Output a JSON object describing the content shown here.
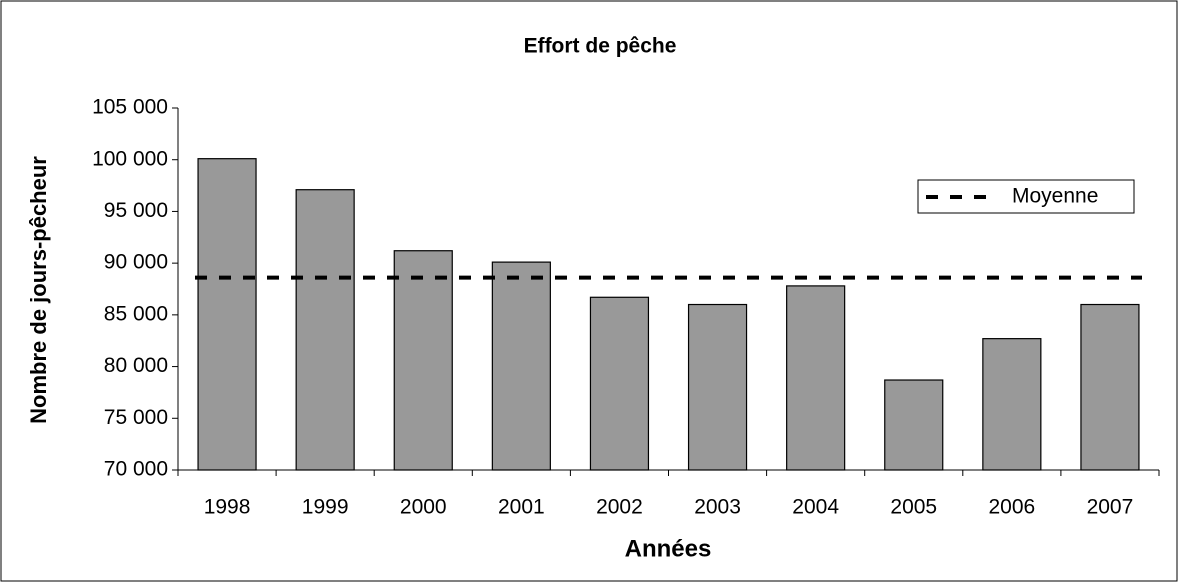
{
  "chart_data": {
    "type": "bar",
    "title": "Effort de pêche",
    "x_label": "Années",
    "y_label": "Nombre de jours-pêcheur",
    "categories": [
      "1998",
      "1999",
      "2000",
      "2001",
      "2002",
      "2003",
      "2004",
      "2005",
      "2006",
      "2007"
    ],
    "values": [
      100100,
      97100,
      91200,
      90100,
      86700,
      86000,
      87800,
      78700,
      82700,
      86000
    ],
    "color": "#999999",
    "mean": {
      "name": "Moyenne",
      "value": 88600,
      "color": "#000000"
    },
    "ylim": [
      70000,
      105000
    ],
    "yticks": [
      {
        "value": 70000,
        "label": "70 000"
      },
      {
        "value": 75000,
        "label": "75 000"
      },
      {
        "value": 80000,
        "label": "80 000"
      },
      {
        "value": 85000,
        "label": "85 000"
      },
      {
        "value": 90000,
        "label": "90 000"
      },
      {
        "value": 95000,
        "label": "95 000"
      },
      {
        "value": 100000,
        "label": "100 000"
      },
      {
        "value": 105000,
        "label": "105 000"
      }
    ],
    "legend": "upper right"
  }
}
